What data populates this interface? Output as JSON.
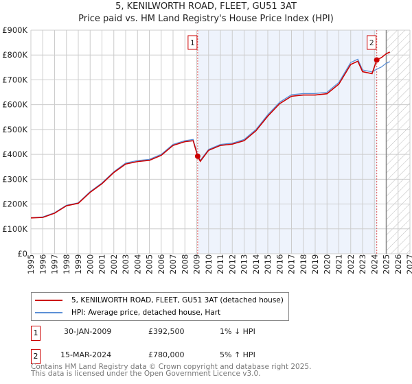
{
  "chart_data": {
    "type": "line",
    "title": "5, KENILWORTH ROAD, FLEET, GU51 3AT",
    "subtitle": "Price paid vs. HM Land Registry's House Price Index (HPI)",
    "xlim": [
      1995,
      2027
    ],
    "ylim": [
      0,
      900000
    ],
    "y_ticks": [
      "£0",
      "£100K",
      "£200K",
      "£300K",
      "£400K",
      "£500K",
      "£600K",
      "£700K",
      "£800K",
      "£900K"
    ],
    "x_ticks": [
      "1995",
      "1996",
      "1997",
      "1998",
      "1999",
      "2000",
      "2001",
      "2002",
      "2003",
      "2004",
      "2005",
      "2006",
      "2007",
      "2008",
      "2009",
      "2010",
      "2011",
      "2012",
      "2013",
      "2014",
      "2015",
      "2016",
      "2017",
      "2018",
      "2019",
      "2020",
      "2021",
      "2022",
      "2023",
      "2024",
      "2025",
      "2026",
      "2027"
    ],
    "x": [
      1995,
      1996,
      1997,
      1998,
      1999,
      2000,
      2001,
      2002,
      2003,
      2004,
      2005,
      2006,
      2007,
      2008,
      2008.7,
      2009.08,
      2009.3,
      2010,
      2011,
      2012,
      2013,
      2014,
      2015,
      2016,
      2017,
      2018,
      2019,
      2020,
      2021,
      2022,
      2022.6,
      2023,
      2023.8,
      2024.2,
      2024.6,
      2025,
      2025.3
    ],
    "series": [
      {
        "name": "5, KENILWORTH ROAD, FLEET, GU51 3AT (detached house)",
        "color": "#cc0000",
        "values": [
          144000,
          146000,
          163000,
          193000,
          203000,
          247000,
          282000,
          327000,
          361000,
          371000,
          376000,
          396000,
          436000,
          451000,
          455000,
          392500,
          372000,
          416000,
          436000,
          441000,
          455000,
          495000,
          554000,
          604000,
          634000,
          639000,
          639000,
          644000,
          683000,
          762000,
          775000,
          733000,
          725000,
          780000,
          790000,
          805000,
          812000
        ]
      },
      {
        "name": "HPI: Average price, detached house, Hart",
        "color": "#5b8fd6",
        "values": [
          145000,
          148000,
          165000,
          195000,
          205000,
          250000,
          285000,
          330000,
          365000,
          375000,
          380000,
          400000,
          440000,
          455000,
          460000,
          396000,
          376000,
          420000,
          440000,
          445000,
          460000,
          500000,
          560000,
          610000,
          640000,
          645000,
          645000,
          650000,
          690000,
          770000,
          783000,
          740000,
          732000,
          743000,
          752000,
          767000,
          773000
        ]
      }
    ],
    "markers": [
      {
        "label": "1",
        "x": 2009.08,
        "y": 392500
      },
      {
        "label": "2",
        "x": 2024.2,
        "y": 780000
      }
    ],
    "highlight_range": [
      2009.08,
      2024.2
    ],
    "forecast_from": 2025
  },
  "legend": {
    "items": [
      "5, KENILWORTH ROAD, FLEET, GU51 3AT (detached house)",
      "HPI: Average price, detached house, Hart"
    ]
  },
  "transactions": [
    {
      "num": "1",
      "date": "30-JAN-2009",
      "price": "£392,500",
      "hpi": "1% ↓ HPI"
    },
    {
      "num": "2",
      "date": "15-MAR-2024",
      "price": "£780,000",
      "hpi": "5% ↑ HPI"
    }
  ],
  "footer": {
    "line1": "Contains HM Land Registry data © Crown copyright and database right 2025.",
    "line2": "This data is licensed under the Open Government Licence v3.0."
  }
}
